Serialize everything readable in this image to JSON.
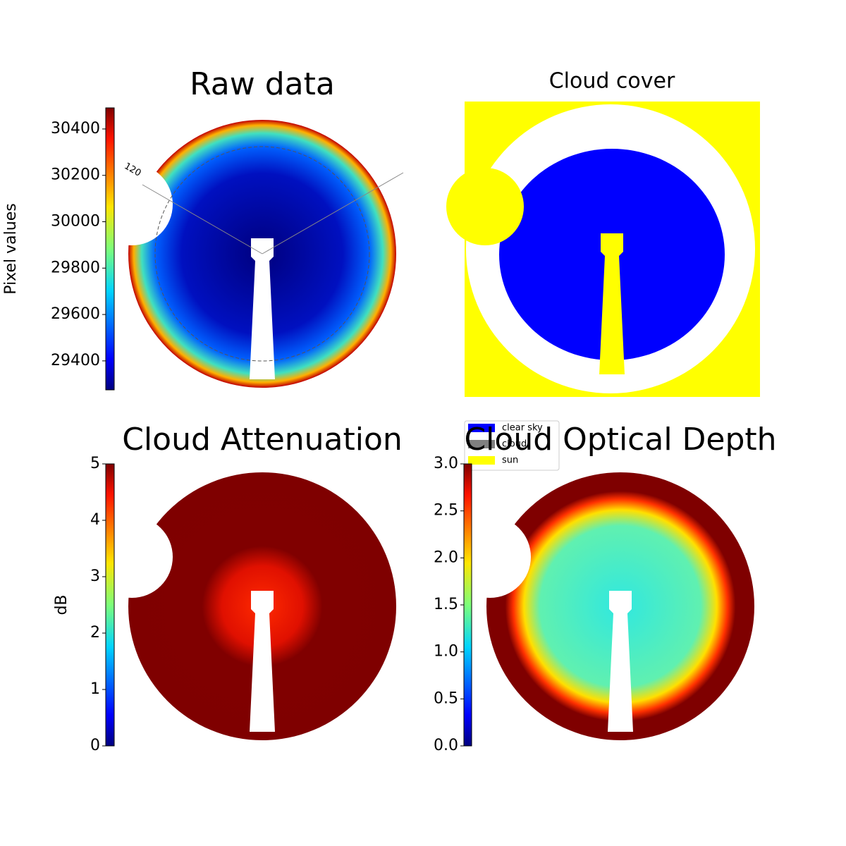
{
  "chart_data": [
    {
      "type": "heatmap",
      "title": "Raw data",
      "colorbar_label": "Pixel values",
      "clim": [
        29275,
        30491
      ],
      "ticks": [
        29400,
        29600,
        29800,
        30000,
        30200,
        30400
      ],
      "annotations": [
        "120"
      ]
    },
    {
      "type": "classmap",
      "title": "Cloud cover",
      "legend": [
        {
          "name": "clear sky",
          "color": "#0000ff"
        },
        {
          "name": "cloud",
          "color": "#808080"
        },
        {
          "name": "sun",
          "color": "#ffff00"
        }
      ]
    },
    {
      "type": "heatmap",
      "title": "Cloud Attenuation",
      "colorbar_label": "dB",
      "clim": [
        0,
        5
      ],
      "ticks": [
        0,
        1,
        2,
        3,
        4,
        5
      ]
    },
    {
      "type": "heatmap",
      "title": "Cloud Optical Depth",
      "clim": [
        0,
        3
      ],
      "ticks": [
        {
          "value": 0,
          "label": "0.0"
        },
        {
          "value": 0.5,
          "label": "0.5"
        },
        {
          "value": 1,
          "label": "1.0"
        },
        {
          "value": 1.5,
          "label": "1.5"
        },
        {
          "value": 2,
          "label": "2.0"
        },
        {
          "value": 2.5,
          "label": "2.5"
        },
        {
          "value": 3,
          "label": "3.0"
        }
      ]
    }
  ]
}
